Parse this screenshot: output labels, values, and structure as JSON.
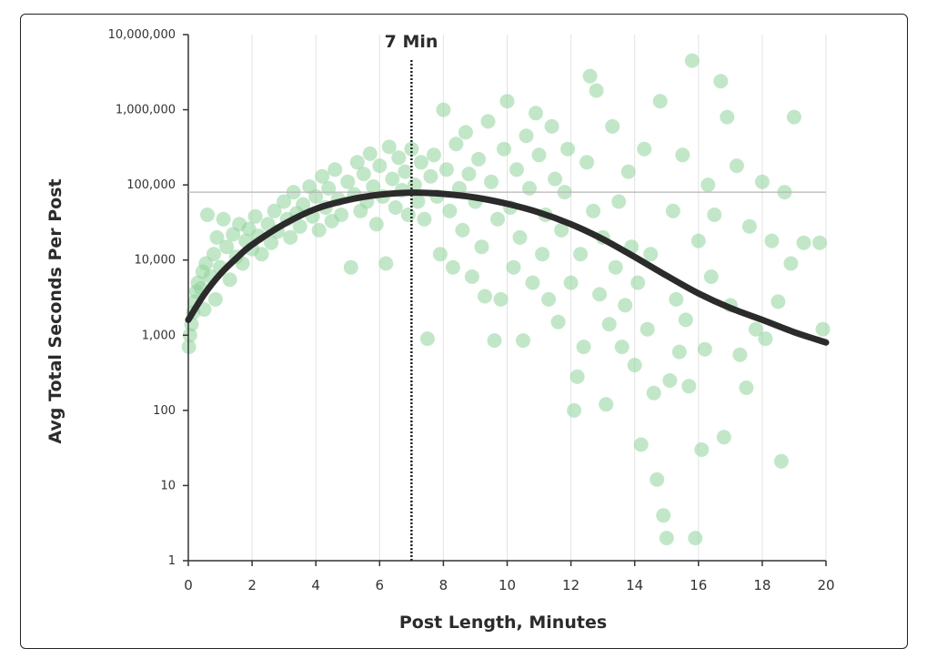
{
  "colors": {
    "points": "#8fd49a",
    "curve": "#2b2b2b",
    "grid": "#e3e3e3",
    "refline": "#b5b5b5",
    "axis": "#333333"
  },
  "chart_data": {
    "type": "scatter",
    "title": "",
    "xlabel": "Post Length, Minutes",
    "ylabel": "Avg Total Seconds Per Post",
    "xlim": [
      0,
      20
    ],
    "ylim": [
      1,
      10000000
    ],
    "y_scale": "log",
    "grid": "vertical",
    "x_ticks": [
      0,
      2,
      4,
      6,
      8,
      10,
      12,
      14,
      16,
      18,
      20
    ],
    "x_tick_labels": [
      "0",
      "2",
      "4",
      "6",
      "8",
      "10",
      "12",
      "14",
      "16",
      "18",
      "20"
    ],
    "y_ticks": [
      1,
      10,
      100,
      1000,
      10000,
      100000,
      1000000,
      10000000
    ],
    "y_tick_labels": [
      "1",
      "10",
      "100",
      "1,000",
      "10,000",
      "100,000",
      "1,000,000",
      "10,000,000"
    ],
    "annotation": {
      "label": "7 Min",
      "x": 7
    },
    "reference_y": 80000,
    "fit_curve": [
      [
        0,
        1600
      ],
      [
        0.5,
        3500
      ],
      [
        1,
        6500
      ],
      [
        1.5,
        10500
      ],
      [
        2,
        16000
      ],
      [
        3,
        30000
      ],
      [
        4,
        48000
      ],
      [
        5,
        63000
      ],
      [
        6,
        74000
      ],
      [
        7,
        79000
      ],
      [
        8,
        76000
      ],
      [
        9,
        68000
      ],
      [
        10,
        56000
      ],
      [
        11,
        43000
      ],
      [
        12,
        30000
      ],
      [
        13,
        19000
      ],
      [
        14,
        11000
      ],
      [
        15,
        6200
      ],
      [
        16,
        3600
      ],
      [
        17,
        2300
      ],
      [
        18,
        1600
      ],
      [
        19,
        1100
      ],
      [
        20,
        800
      ]
    ],
    "points": [
      [
        0.02,
        700
      ],
      [
        0.05,
        1000
      ],
      [
        0.1,
        1400
      ],
      [
        0.15,
        2000
      ],
      [
        0.2,
        2800
      ],
      [
        0.25,
        3800
      ],
      [
        0.3,
        5000
      ],
      [
        0.4,
        4200
      ],
      [
        0.45,
        7000
      ],
      [
        0.5,
        2200
      ],
      [
        0.55,
        9000
      ],
      [
        0.6,
        40000
      ],
      [
        0.7,
        6000
      ],
      [
        0.8,
        12000
      ],
      [
        0.85,
        3000
      ],
      [
        0.9,
        20000
      ],
      [
        1.0,
        8000
      ],
      [
        1.1,
        35000
      ],
      [
        1.2,
        15000
      ],
      [
        1.3,
        5500
      ],
      [
        1.4,
        22000
      ],
      [
        1.5,
        11000
      ],
      [
        1.6,
        30000
      ],
      [
        1.7,
        9000
      ],
      [
        1.8,
        18000
      ],
      [
        1.9,
        26000
      ],
      [
        2.0,
        14000
      ],
      [
        2.1,
        38000
      ],
      [
        2.2,
        21000
      ],
      [
        2.3,
        12000
      ],
      [
        2.5,
        30000
      ],
      [
        2.6,
        17000
      ],
      [
        2.7,
        45000
      ],
      [
        2.8,
        24000
      ],
      [
        3.0,
        60000
      ],
      [
        3.1,
        35000
      ],
      [
        3.2,
        20000
      ],
      [
        3.3,
        80000
      ],
      [
        3.4,
        42000
      ],
      [
        3.5,
        28000
      ],
      [
        3.6,
        55000
      ],
      [
        3.8,
        95000
      ],
      [
        3.9,
        38000
      ],
      [
        4.0,
        70000
      ],
      [
        4.1,
        25000
      ],
      [
        4.2,
        130000
      ],
      [
        4.3,
        50000
      ],
      [
        4.4,
        90000
      ],
      [
        4.5,
        33000
      ],
      [
        4.6,
        160000
      ],
      [
        4.7,
        65000
      ],
      [
        4.8,
        40000
      ],
      [
        5.0,
        110000
      ],
      [
        5.1,
        8000
      ],
      [
        5.2,
        75000
      ],
      [
        5.3,
        200000
      ],
      [
        5.4,
        45000
      ],
      [
        5.5,
        140000
      ],
      [
        5.6,
        60000
      ],
      [
        5.7,
        260000
      ],
      [
        5.8,
        95000
      ],
      [
        5.9,
        30000
      ],
      [
        6.0,
        180000
      ],
      [
        6.1,
        70000
      ],
      [
        6.2,
        9000
      ],
      [
        6.3,
        320000
      ],
      [
        6.4,
        120000
      ],
      [
        6.5,
        50000
      ],
      [
        6.6,
        230000
      ],
      [
        6.7,
        85000
      ],
      [
        6.8,
        150000
      ],
      [
        6.9,
        40000
      ],
      [
        7.0,
        300000
      ],
      [
        7.1,
        100000
      ],
      [
        7.2,
        60000
      ],
      [
        7.3,
        200000
      ],
      [
        7.4,
        35000
      ],
      [
        7.5,
        900
      ],
      [
        7.6,
        130000
      ],
      [
        7.7,
        250000
      ],
      [
        7.8,
        70000
      ],
      [
        7.9,
        12000
      ],
      [
        8.0,
        1000000
      ],
      [
        8.1,
        160000
      ],
      [
        8.2,
        45000
      ],
      [
        8.3,
        8000
      ],
      [
        8.4,
        350000
      ],
      [
        8.5,
        90000
      ],
      [
        8.6,
        25000
      ],
      [
        8.7,
        500000
      ],
      [
        8.8,
        140000
      ],
      [
        8.9,
        6000
      ],
      [
        9.0,
        60000
      ],
      [
        9.1,
        220000
      ],
      [
        9.2,
        15000
      ],
      [
        9.3,
        3300
      ],
      [
        9.4,
        700000
      ],
      [
        9.5,
        110000
      ],
      [
        9.6,
        850
      ],
      [
        9.7,
        35000
      ],
      [
        9.8,
        3000
      ],
      [
        9.9,
        300000
      ],
      [
        10.0,
        1300000
      ],
      [
        10.1,
        50000
      ],
      [
        10.2,
        8000
      ],
      [
        10.3,
        160000
      ],
      [
        10.4,
        20000
      ],
      [
        10.5,
        850
      ],
      [
        10.6,
        450000
      ],
      [
        10.7,
        90000
      ],
      [
        10.8,
        5000
      ],
      [
        10.9,
        900000
      ],
      [
        11.0,
        250000
      ],
      [
        11.1,
        12000
      ],
      [
        11.2,
        40000
      ],
      [
        11.3,
        3000
      ],
      [
        11.4,
        600000
      ],
      [
        11.5,
        120000
      ],
      [
        11.6,
        1500
      ],
      [
        11.7,
        25000
      ],
      [
        11.8,
        80000
      ],
      [
        11.9,
        300000
      ],
      [
        12.0,
        5000
      ],
      [
        12.1,
        100
      ],
      [
        12.2,
        280
      ],
      [
        12.3,
        12000
      ],
      [
        12.4,
        700
      ],
      [
        12.5,
        200000
      ],
      [
        12.6,
        2800000
      ],
      [
        12.7,
        45000
      ],
      [
        12.8,
        1800000
      ],
      [
        12.9,
        3500
      ],
      [
        13.0,
        20000
      ],
      [
        13.1,
        120
      ],
      [
        13.2,
        1400
      ],
      [
        13.3,
        600000
      ],
      [
        13.4,
        8000
      ],
      [
        13.5,
        60000
      ],
      [
        13.6,
        700
      ],
      [
        13.7,
        2500
      ],
      [
        13.8,
        150000
      ],
      [
        13.9,
        15000
      ],
      [
        14.0,
        400
      ],
      [
        14.1,
        5000
      ],
      [
        14.2,
        35
      ],
      [
        14.3,
        300000
      ],
      [
        14.4,
        1200
      ],
      [
        14.5,
        12000
      ],
      [
        14.6,
        170
      ],
      [
        14.7,
        12
      ],
      [
        14.8,
        1300000
      ],
      [
        14.9,
        4
      ],
      [
        15.0,
        2
      ],
      [
        15.1,
        250
      ],
      [
        15.2,
        45000
      ],
      [
        15.3,
        3000
      ],
      [
        15.4,
        600
      ],
      [
        15.5,
        250000
      ],
      [
        15.6,
        1600
      ],
      [
        15.7,
        210
      ],
      [
        15.8,
        4500000
      ],
      [
        15.9,
        2
      ],
      [
        16.0,
        18000
      ],
      [
        16.1,
        30
      ],
      [
        16.2,
        650
      ],
      [
        16.3,
        100000
      ],
      [
        16.4,
        6000
      ],
      [
        16.5,
        40000
      ],
      [
        16.7,
        2400000
      ],
      [
        16.8,
        44
      ],
      [
        16.9,
        800000
      ],
      [
        17.0,
        2500
      ],
      [
        17.2,
        180000
      ],
      [
        17.3,
        550
      ],
      [
        17.5,
        200
      ],
      [
        17.6,
        28000
      ],
      [
        17.8,
        1200
      ],
      [
        18.0,
        110000
      ],
      [
        18.1,
        900
      ],
      [
        18.3,
        18000
      ],
      [
        18.5,
        2800
      ],
      [
        18.6,
        21
      ],
      [
        18.7,
        80000
      ],
      [
        18.9,
        9000
      ],
      [
        19.0,
        800000
      ],
      [
        19.3,
        17000
      ],
      [
        19.8,
        17000
      ],
      [
        19.9,
        1200
      ]
    ]
  }
}
